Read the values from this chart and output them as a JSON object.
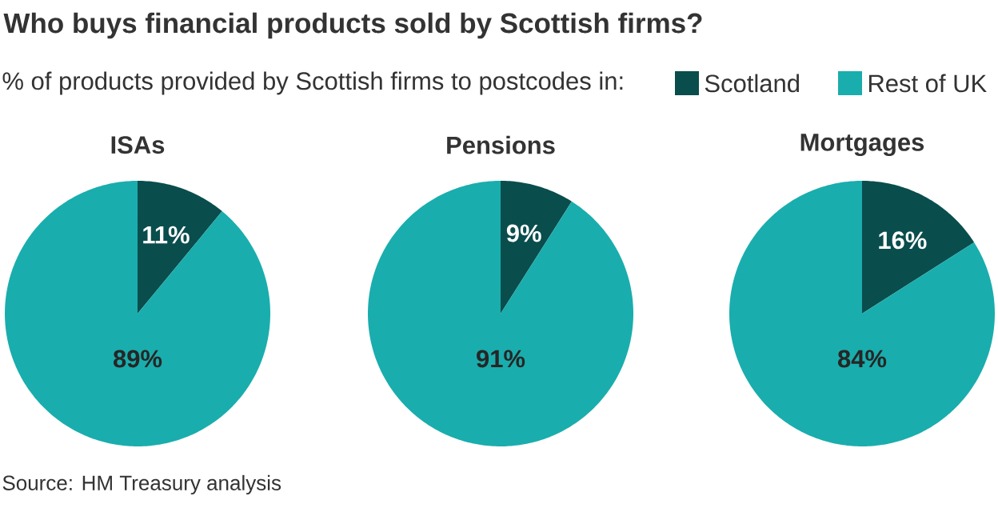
{
  "chart_data": [
    {
      "type": "other",
      "title": "Who buys financial products sold by Scottish firms?",
      "subtitle": "% of products provided by Scottish firms to postcodes in:",
      "annotations": [
        "Source: HM Treasury analysis"
      ]
    },
    {
      "type": "pie",
      "title": "ISAs",
      "categories": [
        "Scotland",
        "Rest of UK"
      ],
      "values": [
        11,
        89
      ],
      "value_labels": [
        "11%",
        "89%"
      ],
      "colors": [
        "#0a4d4d",
        "#1aadad"
      ],
      "legend": "top"
    },
    {
      "type": "pie",
      "title": "Pensions",
      "categories": [
        null,
        null
      ],
      "values": [
        9,
        91
      ],
      "value_labels": [
        "9%",
        "91%"
      ],
      "colors": [
        "#0a4d4d",
        "#1aadad"
      ]
    },
    {
      "type": "pie",
      "title": "Mortgages",
      "categories": [
        null,
        null
      ],
      "values": [
        16,
        84
      ],
      "value_labels": [
        "16%",
        "84%"
      ],
      "colors": [
        "#0a4d4d",
        "#1aadad"
      ]
    }
  ]
}
